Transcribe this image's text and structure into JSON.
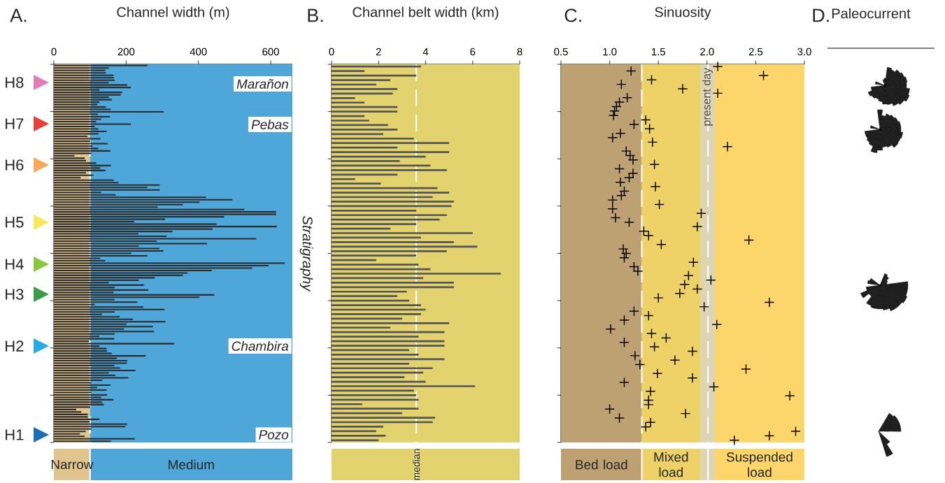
{
  "chart_data": [
    {
      "type": "bar",
      "orientation": "horizontal",
      "title": "A.",
      "xlabel": "Channel width (m)",
      "ylabel": "Stratigraphy",
      "color": "#2b2b2b",
      "xlim": [
        0,
        660
      ],
      "xticks": [
        0,
        200,
        400,
        600
      ],
      "tick_labels": "x",
      "categories": [
        null,
        null,
        null,
        null,
        null,
        null,
        null,
        null,
        null,
        null,
        null,
        null,
        null,
        null,
        null,
        null,
        null,
        null,
        null,
        null,
        null,
        null,
        null,
        null,
        null,
        null,
        null,
        null,
        null,
        null,
        null,
        null,
        null,
        null,
        null,
        null,
        null,
        null,
        null,
        null,
        null,
        null,
        null,
        null,
        null,
        null,
        null,
        null,
        null,
        null,
        null,
        null,
        null,
        null,
        null,
        null,
        null,
        null,
        null,
        null,
        null,
        null,
        null,
        null,
        null,
        null,
        null,
        null,
        null,
        null,
        null,
        null,
        null,
        null,
        null,
        null,
        null,
        null,
        null,
        null,
        null,
        null,
        null,
        null,
        null,
        null,
        null,
        null,
        null,
        null,
        null,
        null,
        null,
        null,
        null,
        null,
        null,
        null,
        null,
        null,
        null,
        null,
        null,
        null,
        null,
        null,
        null,
        null,
        null,
        null,
        null,
        null,
        null,
        null,
        null,
        null,
        null,
        null,
        null,
        null,
        null,
        null,
        null,
        null,
        null,
        null,
        null,
        null,
        null,
        null,
        null,
        null,
        null,
        null,
        null,
        null,
        null,
        null,
        null,
        null,
        null,
        null,
        null,
        null,
        null,
        null,
        null,
        null,
        null,
        null,
        null,
        null,
        null,
        null,
        null
      ],
      "values": [
        259,
        152,
        142,
        144,
        165,
        166,
        168,
        152,
        203,
        213,
        126,
        189,
        185,
        152,
        160,
        126,
        120,
        144,
        157,
        304,
        122,
        155,
        131,
        117,
        213,
        113,
        123,
        146,
        123,
        93,
        129,
        101,
        149,
        107,
        123,
        156,
        104,
        57,
        85,
        89,
        117,
        158,
        128,
        143,
        89,
        109,
        74,
        166,
        179,
        293,
        259,
        293,
        131,
        171,
        421,
        494,
        403,
        357,
        287,
        527,
        615,
        615,
        471,
        308,
        222,
        450,
        617,
        439,
        328,
        234,
        312,
        560,
        285,
        424,
        235,
        292,
        303,
        214,
        259,
        128,
        142,
        639,
        594,
        549,
        437,
        370,
        357,
        279,
        235,
        152,
        249,
        168,
        261,
        165,
        444,
        403,
        168,
        231,
        113,
        248,
        306,
        168,
        133,
        182,
        219,
        309,
        201,
        274,
        194,
        277,
        168,
        126,
        167,
        97,
        333,
        126,
        146,
        147,
        160,
        254,
        174,
        203,
        202,
        167,
        183,
        226,
        152,
        170,
        206,
        134,
        104,
        157,
        120,
        146,
        104,
        147,
        131,
        165,
        133,
        138,
        101,
        62,
        76,
        94,
        94,
        126,
        99,
        203,
        198,
        104,
        88,
        72,
        85,
        224,
        158
      ],
      "bands": [
        {
          "axis": "x",
          "from": 0,
          "to": 100,
          "label": "Narrow",
          "color": "#e2c48f"
        },
        {
          "axis": "x",
          "from": 100,
          "to": 660,
          "label": "Medium",
          "color": "#4fa6d8"
        }
      ],
      "ref_lines": [
        {
          "axis": "x",
          "value": 100,
          "color": "#ffffff",
          "line_style": "dashed"
        }
      ],
      "annotations": [
        "H8",
        "H7",
        "H6",
        "H5",
        "H4",
        "H3",
        "H2",
        "H1",
        "Marañon",
        "Pebas",
        "Chambira",
        "Pozo"
      ]
    },
    {
      "type": "bar",
      "orientation": "horizontal",
      "title": "B.",
      "xlabel": "Channel belt width (km)",
      "color": "#555555",
      "xlim": [
        0,
        8
      ],
      "xticks": [
        0,
        2,
        4,
        6,
        8
      ],
      "tick_labels": "x",
      "categories": [
        null,
        null,
        null,
        null,
        null,
        null,
        null,
        null,
        null,
        null,
        null,
        null,
        null,
        null,
        null,
        null,
        null,
        null,
        null,
        null,
        null,
        null,
        null,
        null,
        null,
        null,
        null,
        null,
        null,
        null,
        null,
        null,
        null,
        null,
        null,
        null,
        null,
        null,
        null,
        null,
        null,
        null,
        null,
        null,
        null,
        null,
        null,
        null,
        null,
        null,
        null,
        null,
        null,
        null,
        null,
        null,
        null,
        null,
        null,
        null,
        null,
        null,
        null,
        null,
        null,
        null,
        null,
        null,
        null,
        null,
        null,
        null,
        null,
        null,
        null,
        null,
        null,
        null,
        null,
        null,
        null,
        null,
        null,
        null
      ],
      "values": [
        3.8,
        1.4,
        3.6,
        2.5,
        1.9,
        2.8,
        2.6,
        1.0,
        1.4,
        2.8,
        2.8,
        1.4,
        1.6,
        2.4,
        2.8,
        2.2,
        3.5,
        5.0,
        2.8,
        5.0,
        4.0,
        2.9,
        4.2,
        4.9,
        2.8,
        1.0,
        2.1,
        4.5,
        5.0,
        4.3,
        5.2,
        5.1,
        3.6,
        4.9,
        4.6,
        3.6,
        2.5,
        6.0,
        3.8,
        5.2,
        6.2,
        4.9,
        3.6,
        1.9,
        3.7,
        4.2,
        7.2,
        3.9,
        5.2,
        5.2,
        3.2,
        2.8,
        3.3,
        3.8,
        4.0,
        3.8,
        3.0,
        5.0,
        2.5,
        4.8,
        3.7,
        4.8,
        4.8,
        3.3,
        3.7,
        4.8,
        3.3,
        4.3,
        3.9,
        3.1,
        4.0,
        6.1,
        3.5,
        3.6,
        3.7,
        1.3,
        3.7,
        3.0,
        4.4,
        4.3,
        2.2,
        1.9,
        2.3,
        2.0
      ],
      "bands": [
        {
          "axis": "x",
          "from": 0,
          "to": 8,
          "color": "#e3d36e"
        }
      ],
      "ref_lines": [
        {
          "axis": "x",
          "value": 3.6,
          "label": "median",
          "color": "#ffffff",
          "line_style": "dashed"
        }
      ]
    },
    {
      "type": "scatter",
      "orientation": "horizontal",
      "title": "C.",
      "xlabel": "Sinuosity",
      "color": "#000000",
      "marker": "cross",
      "xlim": [
        0.5,
        3.0
      ],
      "xticks": [
        {
          "value": 0.5,
          "label": "0.5"
        },
        {
          "value": 1.0,
          "label": "1.0"
        },
        {
          "value": 1.5,
          "label": "1.5"
        },
        {
          "value": 2.0,
          "label": "2.0"
        },
        {
          "value": 2.5,
          "label": "2.5"
        },
        {
          "value": 3.0,
          "label": "3.0"
        }
      ],
      "tick_labels": "x",
      "categories": [
        null,
        null,
        null,
        null,
        null,
        null,
        null,
        null,
        null,
        null,
        null,
        null,
        null,
        null,
        null,
        null,
        null,
        null,
        null,
        null,
        null,
        null,
        null,
        null,
        null,
        null,
        null,
        null,
        null,
        null,
        null,
        null,
        null,
        null,
        null,
        null,
        null,
        null,
        null,
        null,
        null,
        null,
        null,
        null,
        null,
        null,
        null,
        null,
        null,
        null,
        null,
        null,
        null,
        null,
        null,
        null,
        null,
        null,
        null,
        null,
        null,
        null,
        null,
        null,
        null,
        null,
        null,
        null,
        null,
        null,
        null,
        null,
        null,
        null,
        null,
        null,
        null,
        null,
        null,
        null,
        null,
        null,
        null,
        null,
        null
      ],
      "values": [
        2.11,
        1.22,
        2.58,
        1.43,
        1.12,
        1.75,
        2.11,
        1.18,
        1.1,
        1.07,
        1.05,
        1.04,
        1.37,
        1.25,
        1.41,
        1.11,
        1.03,
        1.44,
        2.21,
        1.17,
        1.21,
        1.24,
        1.46,
        1.1,
        1.24,
        1.2,
        1.11,
        1.47,
        1.15,
        1.12,
        1.03,
        1.51,
        1.03,
        1.94,
        1.06,
        1.2,
        1.9,
        1.35,
        1.4,
        2.43,
        1.53,
        1.14,
        1.17,
        1.15,
        1.86,
        1.25,
        1.29,
        1.81,
        2.04,
        1.77,
        1.9,
        1.72,
        1.5,
        2.64,
        1.97,
        1.25,
        1.4,
        1.15,
        2.1,
        1.01,
        1.43,
        1.58,
        1.15,
        1.46,
        1.85,
        1.26,
        1.67,
        1.31,
        2.4,
        1.49,
        1.85,
        1.15,
        2.07,
        1.42,
        2.85,
        1.4,
        1.4,
        1.0,
        1.78,
        1.1,
        1.42,
        1.37,
        2.91,
        2.64,
        2.28
      ],
      "bands": [
        {
          "axis": "x",
          "from": 0.5,
          "to": 1.33,
          "label": "Bed load",
          "color": "#bda172"
        },
        {
          "axis": "x",
          "from": 1.33,
          "to": 1.93,
          "label": "Mixed load",
          "color": "#eed267"
        },
        {
          "axis": "x",
          "from": 1.93,
          "to": 2.08,
          "label": "present day",
          "color": "#ddd5b3"
        },
        {
          "axis": "x",
          "from": 2.08,
          "to": 3.0,
          "label": "Suspended load",
          "color": "#fdd66b"
        }
      ],
      "ref_lines": [
        {
          "axis": "x",
          "value": 1.33,
          "color": "#ffffff",
          "line_style": "dashed"
        },
        {
          "axis": "x",
          "value": 2.01,
          "color": "#ffffff",
          "line_style": "dashed"
        }
      ]
    },
    {
      "type": "other",
      "title": "D.",
      "xlabel": "Paleocurrent"
    }
  ]
}
